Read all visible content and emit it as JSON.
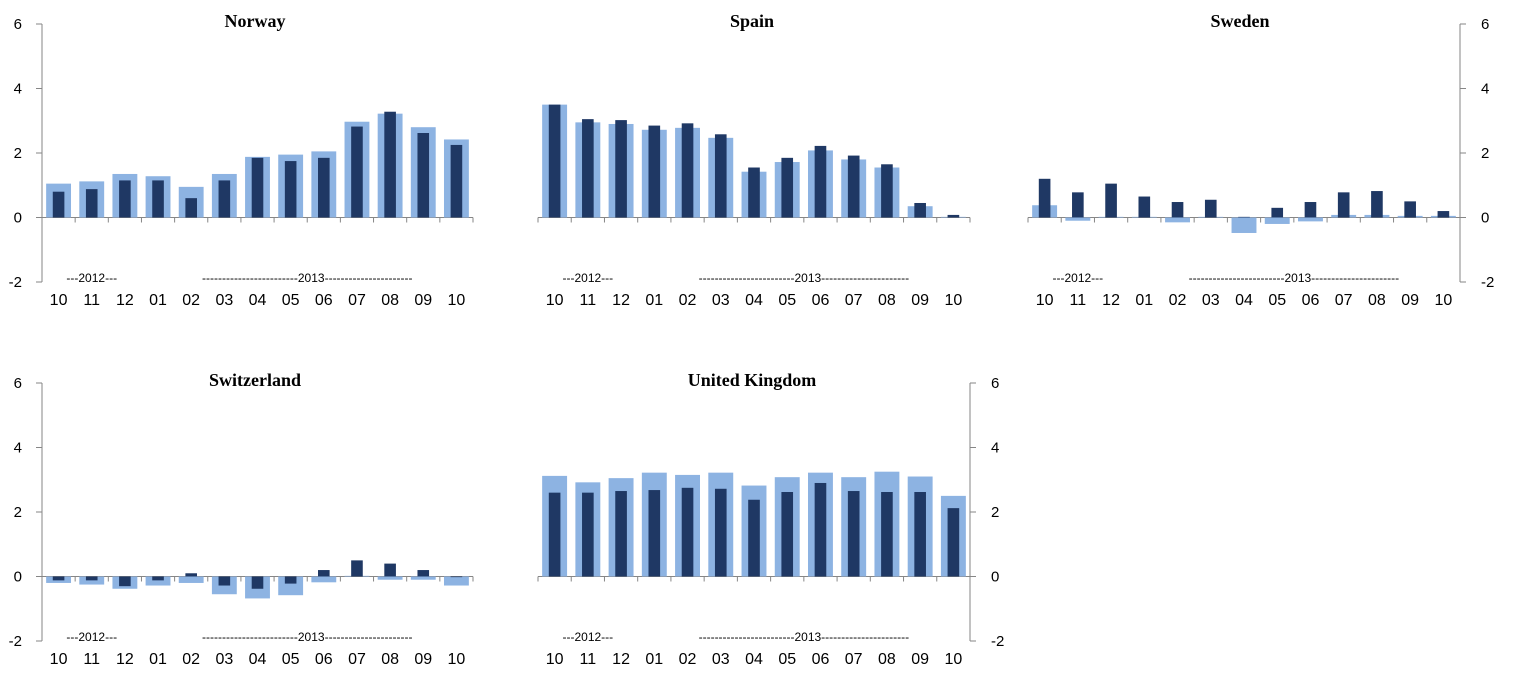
{
  "chart_data": [
    {
      "type": "bar",
      "title": "Norway",
      "categories": [
        "10",
        "11",
        "12",
        "01",
        "02",
        "03",
        "04",
        "05",
        "06",
        "07",
        "08",
        "09",
        "10"
      ],
      "year_labels": [
        {
          "text": "---2012---",
          "from": 0,
          "to": 2
        },
        {
          "text": "------------------------2013----------------------",
          "from": 3,
          "to": 12
        }
      ],
      "series": [
        {
          "values": [
            1.05,
            1.12,
            1.35,
            1.28,
            0.95,
            1.35,
            1.88,
            1.95,
            2.05,
            2.97,
            3.22,
            2.8,
            2.42
          ]
        },
        {
          "values": [
            0.8,
            0.88,
            1.15,
            1.15,
            0.6,
            1.15,
            1.85,
            1.75,
            1.85,
            2.82,
            3.28,
            2.62,
            2.25
          ]
        }
      ],
      "ylim": [
        -2,
        6
      ],
      "yticks": [
        -2,
        0,
        2,
        4,
        6
      ],
      "yaxis_side": "left"
    },
    {
      "type": "bar",
      "title": "Spain",
      "categories": [
        "10",
        "11",
        "12",
        "01",
        "02",
        "03",
        "04",
        "05",
        "06",
        "07",
        "08",
        "09",
        "10"
      ],
      "year_labels": [
        {
          "text": "---2012---",
          "from": 0,
          "to": 2
        },
        {
          "text": "------------------------2013----------------------",
          "from": 3,
          "to": 12
        }
      ],
      "series": [
        {
          "values": [
            3.5,
            2.95,
            2.9,
            2.72,
            2.78,
            2.47,
            1.42,
            1.72,
            2.08,
            1.8,
            1.55,
            0.35,
            0.02
          ]
        },
        {
          "values": [
            3.5,
            3.05,
            3.02,
            2.85,
            2.92,
            2.58,
            1.55,
            1.85,
            2.22,
            1.92,
            1.65,
            0.45,
            0.08
          ]
        }
      ],
      "ylim": [
        -2,
        6
      ],
      "yticks": [],
      "yaxis_side": "none"
    },
    {
      "type": "bar",
      "title": "Sweden",
      "categories": [
        "10",
        "11",
        "12",
        "01",
        "02",
        "03",
        "04",
        "05",
        "06",
        "07",
        "08",
        "09",
        "10"
      ],
      "year_labels": [
        {
          "text": "---2012---",
          "from": 0,
          "to": 2
        },
        {
          "text": "------------------------2013----------------------",
          "from": 3,
          "to": 12
        }
      ],
      "series": [
        {
          "values": [
            0.38,
            -0.1,
            0.02,
            0.02,
            -0.15,
            0.02,
            -0.48,
            -0.2,
            -0.12,
            0.08,
            0.08,
            0.05,
            0.05
          ]
        },
        {
          "values": [
            1.2,
            0.78,
            1.05,
            0.65,
            0.48,
            0.55,
            0.02,
            0.3,
            0.48,
            0.78,
            0.82,
            0.5,
            0.2
          ]
        }
      ],
      "ylim": [
        -2,
        6
      ],
      "yticks": [
        -2,
        0,
        2,
        4,
        6
      ],
      "yaxis_side": "right"
    },
    {
      "type": "bar",
      "title": "Switzerland",
      "categories": [
        "10",
        "11",
        "12",
        "01",
        "02",
        "03",
        "04",
        "05",
        "06",
        "07",
        "08",
        "09",
        "10"
      ],
      "year_labels": [
        {
          "text": "---2012---",
          "from": 0,
          "to": 2
        },
        {
          "text": "------------------------2013----------------------",
          "from": 3,
          "to": 12
        }
      ],
      "series": [
        {
          "values": [
            -0.2,
            -0.25,
            -0.38,
            -0.28,
            -0.2,
            -0.55,
            -0.68,
            -0.58,
            -0.18,
            0.02,
            -0.1,
            -0.1,
            -0.28
          ]
        },
        {
          "values": [
            -0.12,
            -0.12,
            -0.3,
            -0.12,
            0.1,
            -0.28,
            -0.38,
            -0.22,
            0.2,
            0.5,
            0.4,
            0.2,
            -0.02
          ]
        }
      ],
      "ylim": [
        -2,
        6
      ],
      "yticks": [
        -2,
        0,
        2,
        4,
        6
      ],
      "yaxis_side": "left"
    },
    {
      "type": "bar",
      "title": "United Kingdom",
      "categories": [
        "10",
        "11",
        "12",
        "01",
        "02",
        "03",
        "04",
        "05",
        "06",
        "07",
        "08",
        "09",
        "10"
      ],
      "year_labels": [
        {
          "text": "---2012---",
          "from": 0,
          "to": 2
        },
        {
          "text": "------------------------2013----------------------",
          "from": 3,
          "to": 12
        }
      ],
      "series": [
        {
          "values": [
            3.12,
            2.92,
            3.05,
            3.22,
            3.15,
            3.22,
            2.82,
            3.08,
            3.22,
            3.08,
            3.25,
            3.1,
            2.5
          ]
        },
        {
          "values": [
            2.6,
            2.6,
            2.65,
            2.68,
            2.75,
            2.72,
            2.38,
            2.62,
            2.9,
            2.65,
            2.62,
            2.62,
            2.12
          ]
        }
      ],
      "ylim": [
        -2,
        6
      ],
      "yticks": [
        -2,
        0,
        2,
        4,
        6
      ],
      "yaxis_side": "right"
    }
  ],
  "colors": {
    "series_light": "#8db3e2",
    "series_dark": "#1f3864",
    "axis": "#868686"
  }
}
